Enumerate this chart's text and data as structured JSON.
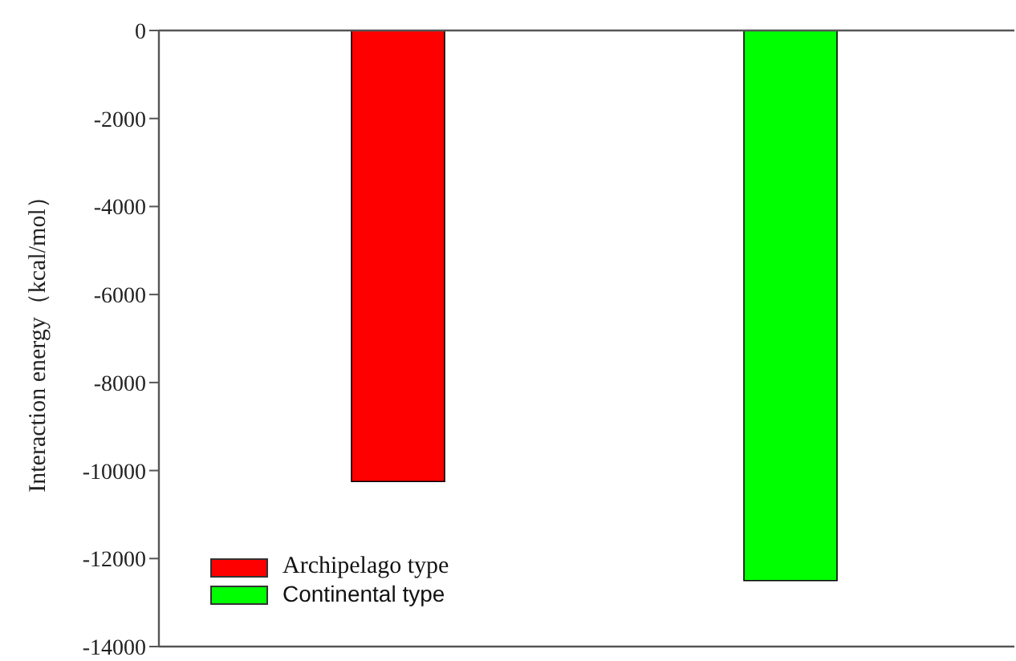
{
  "chart_data": {
    "type": "bar",
    "categories": [
      null,
      null
    ],
    "series": [
      {
        "name": "Archipelago type",
        "color": "#ff0000",
        "values": [
          -10250,
          null
        ]
      },
      {
        "name": "Continental type",
        "color": "#00ff00",
        "values": [
          null,
          -12500
        ]
      }
    ],
    "ylabel": "Interaction energy（kcal/mol）",
    "ylim": [
      -14000,
      0
    ],
    "yticks": [
      0,
      -2000,
      -4000,
      -6000,
      -8000,
      -10000,
      -12000,
      -14000
    ],
    "legend": "bottom left",
    "tick_labels": "y"
  }
}
